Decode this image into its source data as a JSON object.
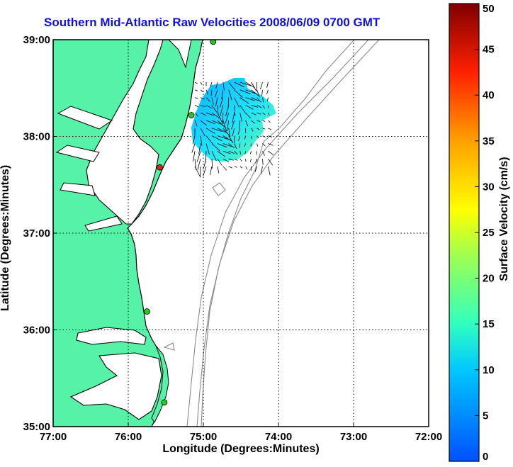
{
  "title": "Southern Mid-Atlantic Raw Velocities 2008/06/09 0700 GMT",
  "map": {
    "type": "geographic-velocity-map",
    "xlabel": "Longitude (Degrees:Minutes)",
    "ylabel": "Latitude (Degrees:Minutes)",
    "xlim": [
      -77,
      -72
    ],
    "ylim": [
      35,
      39
    ],
    "x_ticks": [
      {
        "value": -77,
        "label": "77:00"
      },
      {
        "value": -76,
        "label": "76:00"
      },
      {
        "value": -75,
        "label": "75:00"
      },
      {
        "value": -74,
        "label": "74:00"
      },
      {
        "value": -73,
        "label": "73:00"
      },
      {
        "value": -72,
        "label": "72:00"
      }
    ],
    "y_ticks": [
      {
        "value": 39,
        "label": "39:00"
      },
      {
        "value": 38,
        "label": "38:00"
      },
      {
        "value": 37,
        "label": "37:00"
      },
      {
        "value": 36,
        "label": "36:00"
      },
      {
        "value": 35,
        "label": "35:00"
      }
    ],
    "grid": "dotted",
    "land_color": "#55f2a8",
    "coast_color": "#000000",
    "bathymetry_color": "#8a8a8a",
    "stations": [
      {
        "lon": -74.87,
        "lat": 38.98,
        "color": "#22cc22"
      },
      {
        "lon": -75.16,
        "lat": 38.22,
        "color": "#22cc22"
      },
      {
        "lon": -75.58,
        "lat": 37.68,
        "color": "#dd2222"
      },
      {
        "lon": -75.75,
        "lat": 36.19,
        "color": "#22cc22"
      },
      {
        "lon": -75.52,
        "lat": 35.25,
        "color": "#22cc22"
      }
    ],
    "velocity_region": {
      "lon": [
        -75.15,
        -74.1
      ],
      "lat": [
        37.65,
        38.6
      ],
      "typical_speed_cm_s": [
        4,
        15
      ]
    }
  },
  "colorbar": {
    "label": "Surface Velocity (cm/s)",
    "range": [
      0,
      50
    ],
    "ticks": [
      "0",
      "5",
      "10",
      "15",
      "20",
      "25",
      "30",
      "35",
      "40",
      "45",
      "50"
    ]
  }
}
